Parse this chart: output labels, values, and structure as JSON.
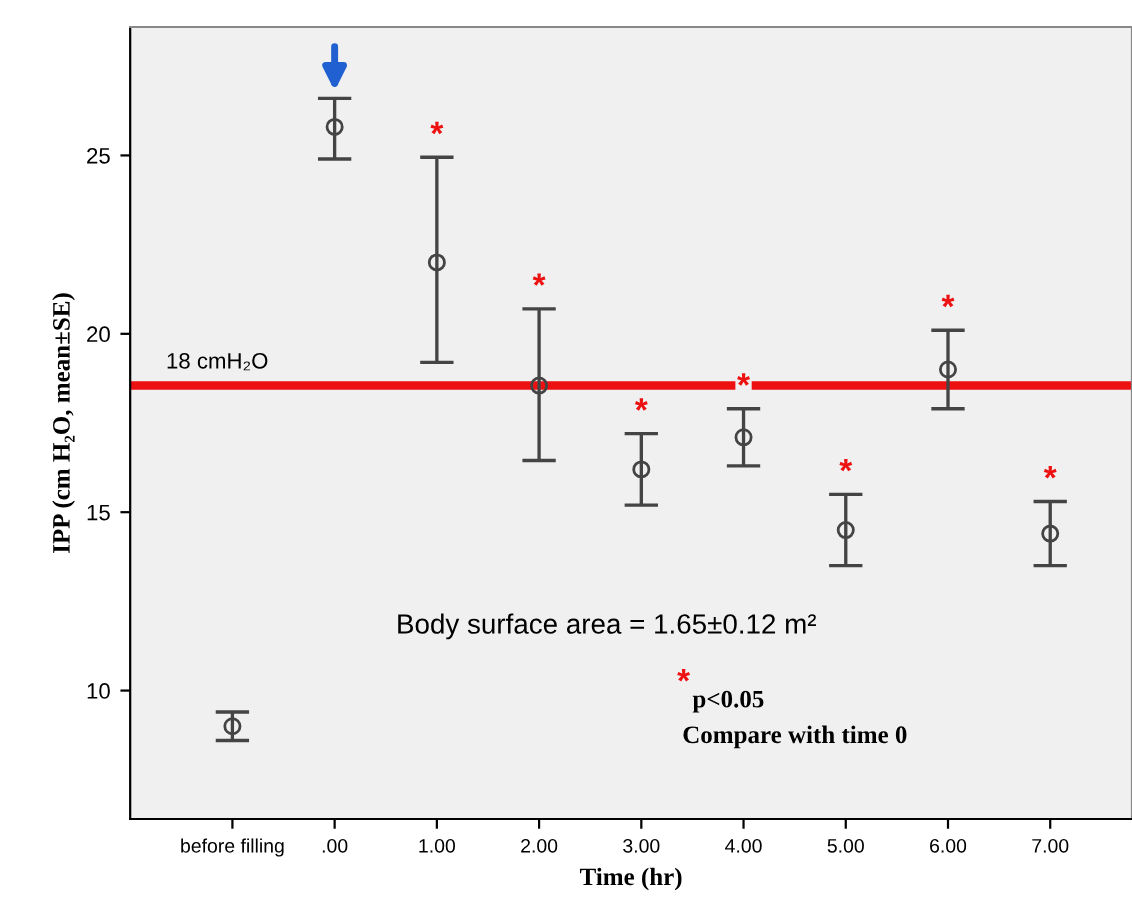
{
  "chart_data": {
    "type": "scatter",
    "xlabel": "Time (hr)",
    "ylabel": "IPP (cm H₂O, mean±SE)",
    "categories": [
      "before filling",
      ".00",
      "1.00",
      "2.00",
      "3.00",
      "4.00",
      "5.00",
      "6.00",
      "7.00"
    ],
    "values": [
      9.0,
      25.8,
      22.0,
      18.55,
      16.2,
      17.1,
      14.5,
      19.0,
      14.4
    ],
    "errors": [
      [
        8.6,
        9.4
      ],
      [
        24.9,
        26.6
      ],
      [
        19.2,
        24.95
      ],
      [
        16.45,
        20.7
      ],
      [
        15.2,
        17.2
      ],
      [
        16.3,
        17.9
      ],
      [
        13.5,
        15.5
      ],
      [
        17.9,
        20.1
      ],
      [
        13.5,
        15.3
      ]
    ],
    "color": "#444444",
    "marker": "circle",
    "ylim": [
      6.4,
      28.6
    ],
    "yticks": [
      10,
      15,
      20,
      25
    ],
    "grid": false,
    "ref_lines": [
      {
        "axis": "y",
        "value": 18.55,
        "label": "18 cmH₂O",
        "color": "#ee1111",
        "line_style": "solid"
      }
    ],
    "annotations": [
      {
        "text": "*",
        "x": "1.00",
        "y": 24.95
      },
      {
        "text": "*",
        "x": "2.00",
        "y": 20.7
      },
      {
        "text": "*",
        "x": "3.00",
        "y": 17.2
      },
      {
        "text": "*",
        "x": "4.00",
        "y": 17.9
      },
      {
        "text": "*",
        "x": "5.00",
        "y": 15.5
      },
      {
        "text": "*",
        "x": "6.00",
        "y": 20.1
      },
      {
        "text": "*",
        "x": "7.00",
        "y": 15.3
      },
      "Body surface area = 1.65±0.12 m²",
      "*",
      "p<0.05",
      "Compare with time 0"
    ]
  }
}
